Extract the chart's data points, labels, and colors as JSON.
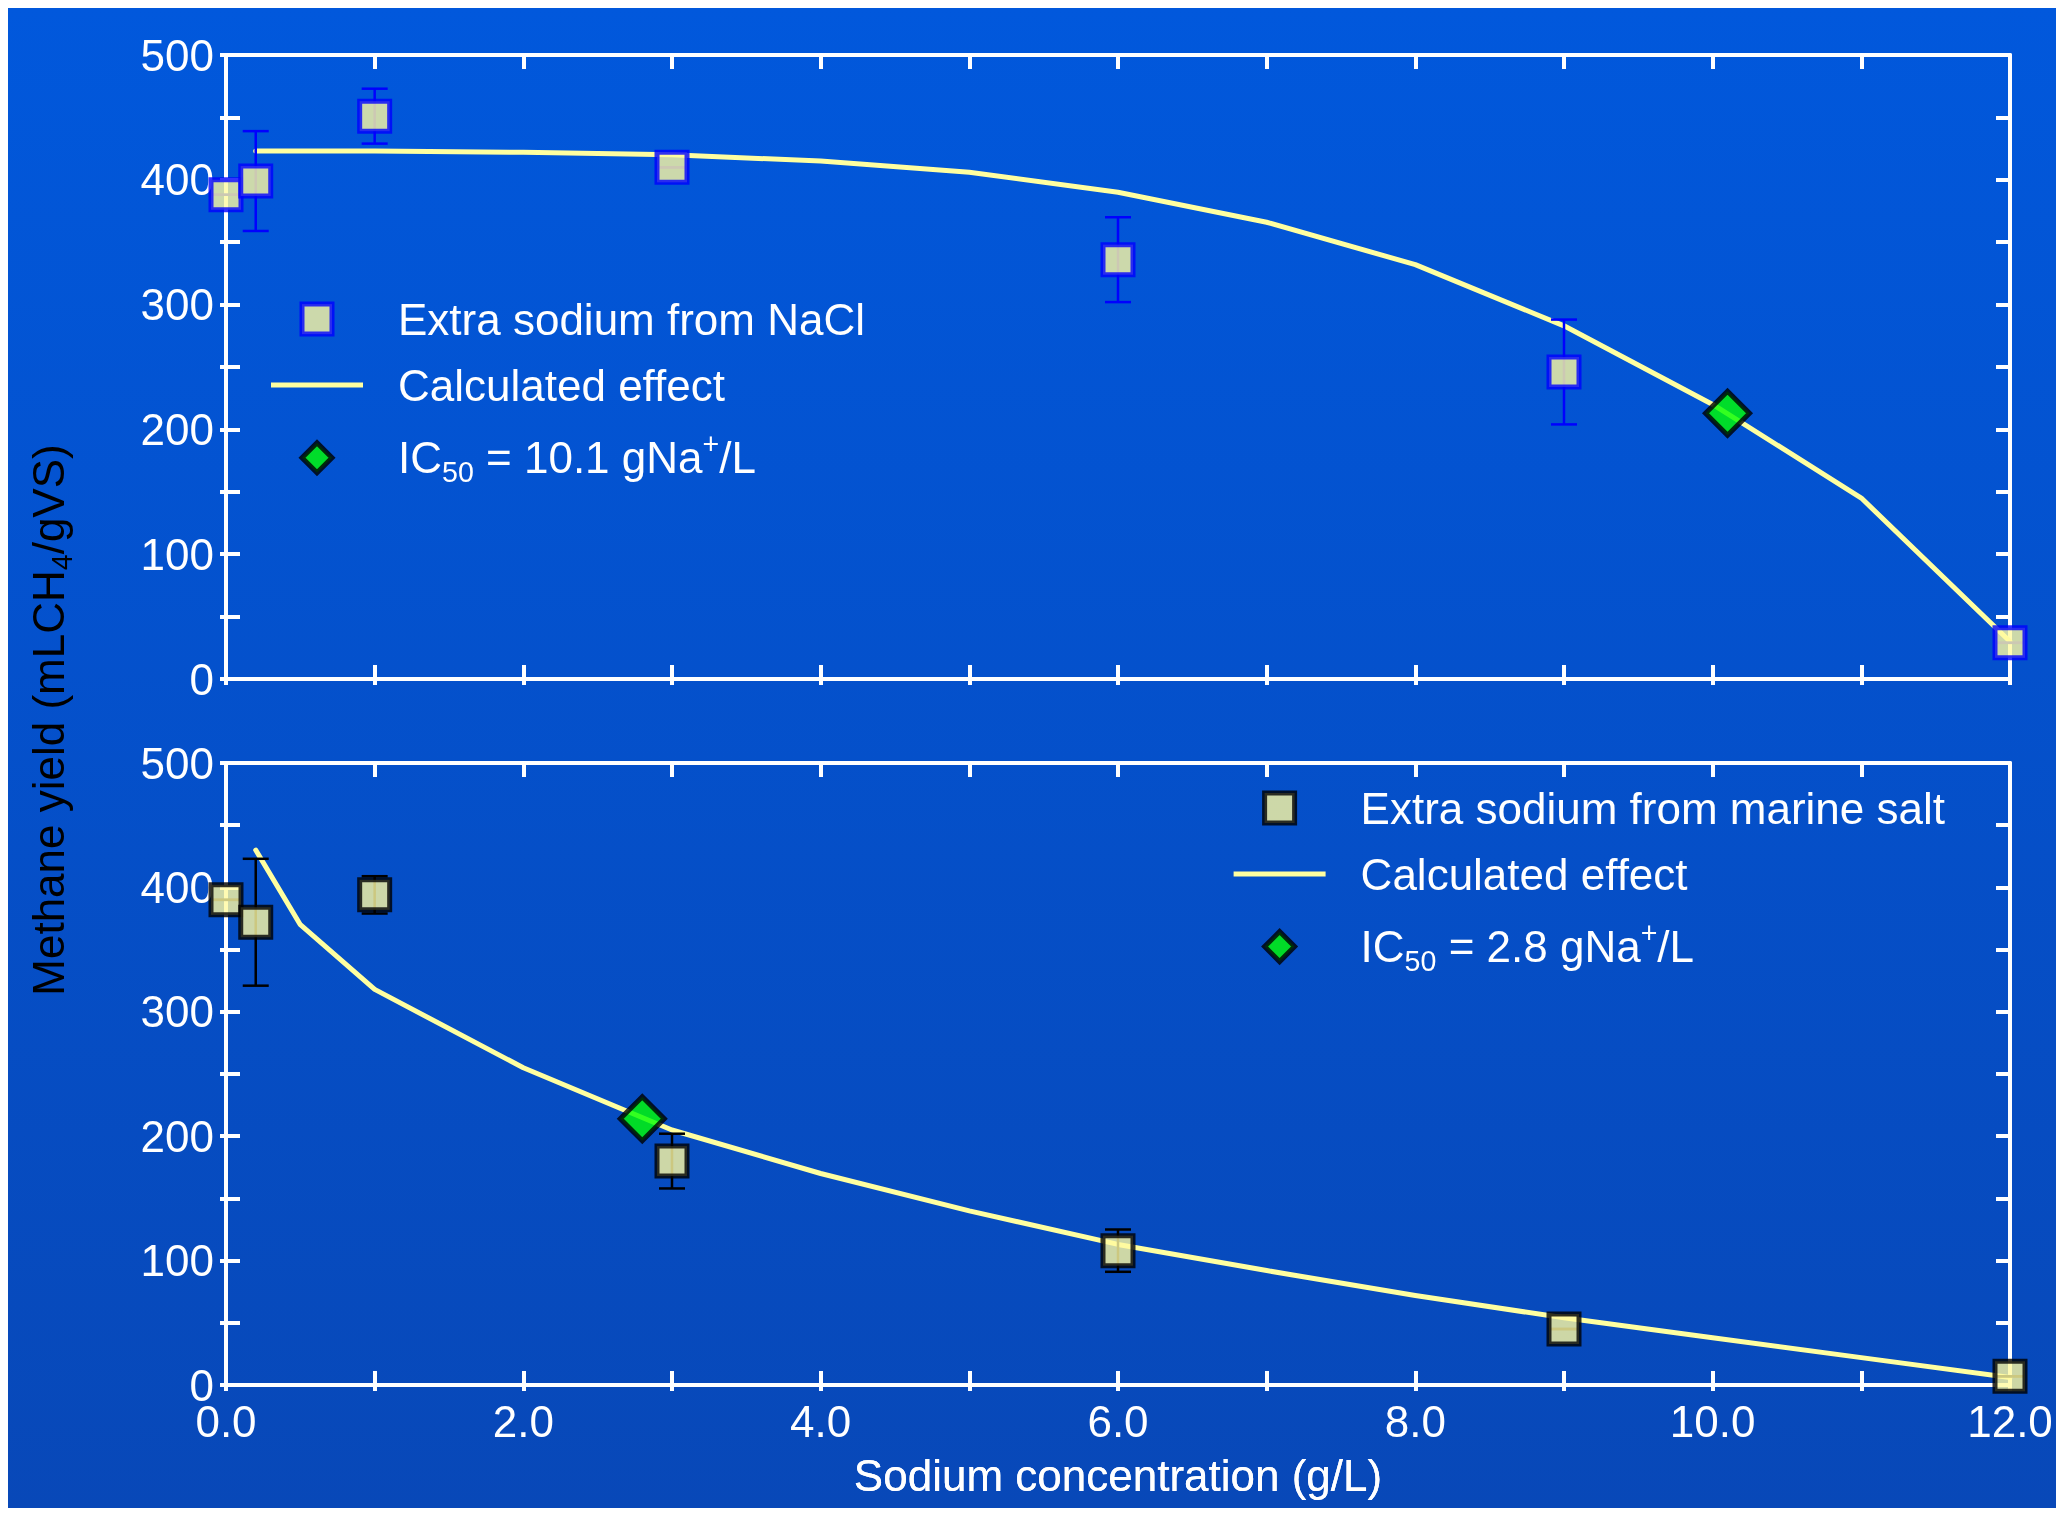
{
  "chart_data": [
    {
      "type": "scatter",
      "ylabel": "Methane yield (mLCH$_{4}$/gVS)",
      "xlim": [
        0,
        12
      ],
      "ylim": [
        0,
        500
      ],
      "tick_labels": "y",
      "legend": "left",
      "xticks": [
        0,
        1,
        2,
        3,
        4,
        5,
        6,
        7,
        8,
        9,
        10,
        11,
        12
      ],
      "yticks": [
        0,
        {
          "value": 50,
          "label": null
        },
        100,
        {
          "value": 150,
          "label": null
        },
        200,
        {
          "value": 250,
          "label": null
        },
        300,
        {
          "value": 350,
          "label": null
        },
        400,
        {
          "value": 450,
          "label": null
        },
        500
      ],
      "series": [
        {
          "name": "Extra sodium from NaCl",
          "marker": "square",
          "color": "#fffaa0",
          "x": [
            0,
            0.2,
            1,
            3,
            6,
            9,
            12
          ],
          "values": [
            388,
            399,
            451,
            410,
            336,
            246,
            29
          ],
          "errors": [
            null,
            40,
            22,
            null,
            34,
            42,
            null
          ]
        },
        {
          "name": "Calculated effect",
          "type": "line",
          "marker": "none",
          "color": "#ffffa0",
          "x": [
            0.2,
            1,
            2,
            3,
            4,
            5,
            6,
            7,
            8,
            9,
            10,
            11,
            12
          ],
          "values": [
            423,
            423,
            422,
            420,
            415,
            406,
            390,
            366,
            332,
            283,
            220,
            145,
            30
          ]
        },
        {
          "name": "IC$_{50}$ = 10.1 gNa$^{+}$/L",
          "marker": "diamond",
          "color": "#00ff00",
          "x": [
            10.1
          ],
          "values": [
            213
          ]
        }
      ]
    },
    {
      "type": "scatter",
      "xlabel": "Sodium concentration (g/L)",
      "xlim": [
        0,
        12
      ],
      "ylim": [
        0,
        500
      ],
      "legend": "top right",
      "xticks": [
        {
          "value": 0,
          "label": "0.0"
        },
        {
          "value": 1,
          "label": null
        },
        {
          "value": 2,
          "label": "2.0"
        },
        {
          "value": 3,
          "label": null
        },
        {
          "value": 4,
          "label": "4.0"
        },
        {
          "value": 5,
          "label": null
        },
        {
          "value": 6,
          "label": "6.0"
        },
        {
          "value": 7,
          "label": null
        },
        {
          "value": 8,
          "label": "8.0"
        },
        {
          "value": 9,
          "label": null
        },
        {
          "value": 10,
          "label": "10.0"
        },
        {
          "value": 11,
          "label": null
        },
        {
          "value": 12,
          "label": "12.0"
        }
      ],
      "yticks": [
        0,
        {
          "value": 50,
          "label": null
        },
        100,
        {
          "value": 150,
          "label": null
        },
        200,
        {
          "value": 250,
          "label": null
        },
        300,
        {
          "value": 350,
          "label": null
        },
        400,
        {
          "value": 450,
          "label": null
        },
        500
      ],
      "series": [
        {
          "name": "Extra sodium from marine salt",
          "marker": "square",
          "color": "#fffaa0",
          "x": [
            0,
            0.2,
            1,
            3,
            6,
            9,
            12
          ],
          "values": [
            390,
            372,
            394,
            180,
            108,
            45,
            7
          ],
          "errors": [
            null,
            51,
            15,
            22,
            17,
            null,
            null
          ]
        },
        {
          "name": "Calculated effect",
          "type": "line",
          "marker": "none",
          "color": "#ffffa0",
          "x": [
            0.2,
            0.5,
            1,
            2,
            3,
            4,
            5,
            6,
            7,
            8,
            9,
            10,
            11,
            12
          ],
          "values": [
            430,
            370,
            318,
            255,
            205,
            170,
            140,
            113,
            92,
            72,
            54,
            38,
            22,
            6
          ]
        },
        {
          "name": "IC$_{50}$ = 2.8 gNa$^{+}$/L",
          "marker": "diamond",
          "color": "#00ff00",
          "x": [
            2.8
          ],
          "values": [
            214
          ]
        }
      ]
    }
  ]
}
